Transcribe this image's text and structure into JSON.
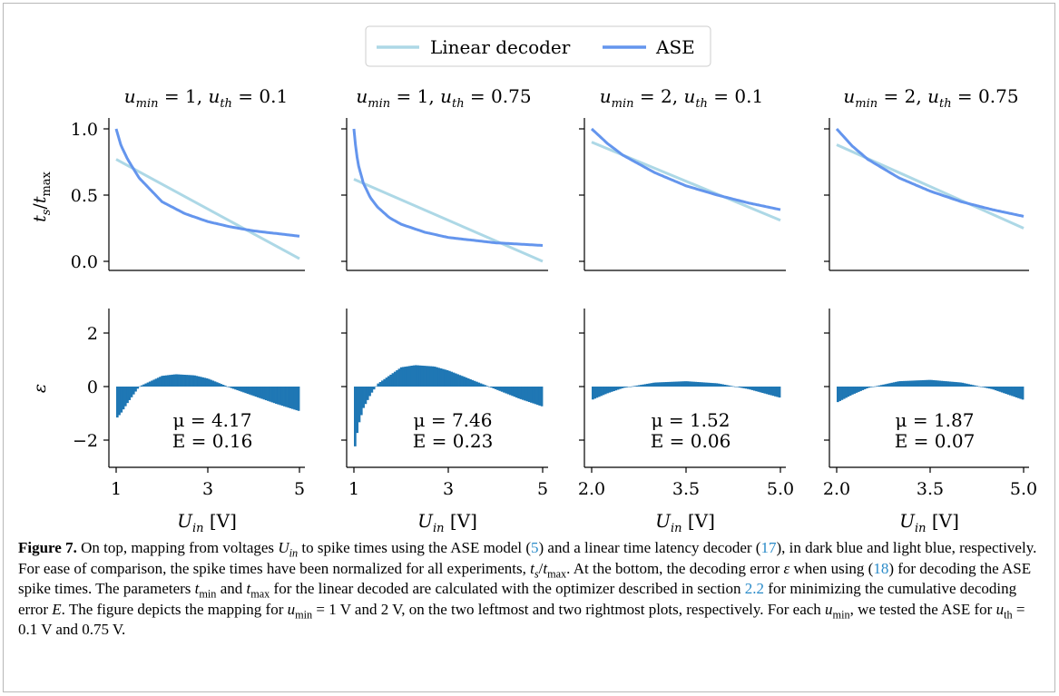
{
  "figure": {
    "legend": {
      "entries": [
        {
          "label": "Linear decoder",
          "color": "#add8e6"
        },
        {
          "label": "ASE",
          "color": "#6495ed"
        }
      ]
    },
    "top_ylabel": "t_s/t_max",
    "bottom_ylabel": "ε",
    "xlabel": "U_in [V]",
    "panels": [
      {
        "title": "u_min = 1, u_th = 0.1",
        "xticks": [
          "1",
          "3",
          "5"
        ]
      },
      {
        "title": "u_min = 1, u_th = 0.75",
        "xticks": [
          "1",
          "3",
          "5"
        ]
      },
      {
        "title": "u_min = 2, u_th = 0.1",
        "xticks": [
          "2.0",
          "3.5",
          "5.0"
        ]
      },
      {
        "title": "u_min = 2, u_th = 0.75",
        "xticks": [
          "2.0",
          "3.5",
          "5.0"
        ]
      }
    ],
    "top_yticks": [
      "0.0",
      "0.5",
      "1.0"
    ],
    "bottom_yticks": [
      "−2",
      "0",
      "2"
    ],
    "bar_color": "#1f77b4"
  },
  "chart_data": [
    {
      "type": "line",
      "title": "u_min = 1, u_th = 0.1",
      "xlabel": "U_in [V]",
      "ylabel": "t_s/t_max",
      "xlim": [
        1,
        5
      ],
      "ylim": [
        0,
        1
      ],
      "series": [
        {
          "name": "Linear decoder",
          "x": [
            1,
            5
          ],
          "y": [
            0.77,
            0.02
          ]
        },
        {
          "name": "ASE",
          "x": [
            1,
            1.1,
            1.25,
            1.5,
            2,
            2.5,
            3,
            3.5,
            4,
            4.5,
            5
          ],
          "y": [
            1.0,
            0.88,
            0.77,
            0.63,
            0.45,
            0.36,
            0.3,
            0.26,
            0.23,
            0.21,
            0.19
          ]
        }
      ]
    },
    {
      "type": "line",
      "title": "u_min = 1, u_th = 0.75",
      "xlabel": "U_in [V]",
      "ylabel": "t_s/t_max",
      "xlim": [
        1,
        5
      ],
      "ylim": [
        0,
        1
      ],
      "series": [
        {
          "name": "Linear decoder",
          "x": [
            1,
            5
          ],
          "y": [
            0.62,
            0.0
          ]
        },
        {
          "name": "ASE",
          "x": [
            1,
            1.05,
            1.1,
            1.2,
            1.35,
            1.5,
            1.75,
            2,
            2.5,
            3,
            3.5,
            4,
            4.5,
            5
          ],
          "y": [
            1.0,
            0.82,
            0.72,
            0.59,
            0.48,
            0.41,
            0.33,
            0.28,
            0.22,
            0.18,
            0.16,
            0.14,
            0.13,
            0.12
          ]
        }
      ]
    },
    {
      "type": "line",
      "title": "u_min = 2, u_th = 0.1",
      "xlabel": "U_in [V]",
      "ylabel": "t_s/t_max",
      "xlim": [
        2,
        5
      ],
      "ylim": [
        0,
        1
      ],
      "series": [
        {
          "name": "Linear decoder",
          "x": [
            2,
            5
          ],
          "y": [
            0.9,
            0.31
          ]
        },
        {
          "name": "ASE",
          "x": [
            2,
            2.25,
            2.5,
            3,
            3.5,
            4,
            4.5,
            5
          ],
          "y": [
            1.0,
            0.89,
            0.8,
            0.67,
            0.57,
            0.5,
            0.44,
            0.39
          ]
        }
      ]
    },
    {
      "type": "line",
      "title": "u_min = 2, u_th = 0.75",
      "xlabel": "U_in [V]",
      "ylabel": "t_s/t_max",
      "xlim": [
        2,
        5
      ],
      "ylim": [
        0,
        1
      ],
      "series": [
        {
          "name": "Linear decoder",
          "x": [
            2,
            5
          ],
          "y": [
            0.88,
            0.25
          ]
        },
        {
          "name": "ASE",
          "x": [
            2,
            2.25,
            2.5,
            3,
            3.5,
            4,
            4.5,
            5
          ],
          "y": [
            1.0,
            0.87,
            0.77,
            0.63,
            0.53,
            0.45,
            0.39,
            0.34
          ]
        }
      ]
    },
    {
      "type": "bar",
      "title": "u_min = 1, u_th = 0.1",
      "xlabel": "U_in [V]",
      "ylabel": "ε",
      "xlim": [
        1,
        5
      ],
      "ylim": [
        -3,
        3
      ],
      "x": [
        1,
        1.1,
        1.25,
        1.5,
        2,
        2.3,
        2.7,
        3,
        3.5,
        4,
        4.5,
        5
      ],
      "values": [
        -1.2,
        -1.0,
        -0.6,
        0.0,
        0.4,
        0.46,
        0.42,
        0.3,
        -0.05,
        -0.35,
        -0.65,
        -0.92
      ],
      "annotations": [
        "μ = 4.17",
        "E = 0.16"
      ]
    },
    {
      "type": "bar",
      "title": "u_min = 1, u_th = 0.75",
      "xlabel": "U_in [V]",
      "ylabel": "ε",
      "xlim": [
        1,
        5
      ],
      "ylim": [
        -3,
        3
      ],
      "x": [
        1,
        1.05,
        1.1,
        1.2,
        1.35,
        1.5,
        2,
        2.3,
        2.7,
        3,
        3.5,
        4,
        4.5,
        5
      ],
      "values": [
        -2.5,
        -1.9,
        -1.4,
        -0.8,
        -0.3,
        0.1,
        0.72,
        0.8,
        0.75,
        0.6,
        0.25,
        -0.1,
        -0.45,
        -0.75
      ],
      "annotations": [
        "μ = 7.46",
        "E = 0.23"
      ]
    },
    {
      "type": "bar",
      "title": "u_min = 2, u_th = 0.1",
      "xlabel": "U_in [V]",
      "ylabel": "ε",
      "xlim": [
        2,
        5
      ],
      "ylim": [
        -3,
        3
      ],
      "x": [
        2,
        2.25,
        2.5,
        3,
        3.5,
        4,
        4.5,
        5
      ],
      "values": [
        -0.5,
        -0.25,
        -0.05,
        0.15,
        0.2,
        0.12,
        -0.1,
        -0.42
      ],
      "annotations": [
        "μ = 1.52",
        "E = 0.06"
      ]
    },
    {
      "type": "bar",
      "title": "u_min = 2, u_th = 0.75",
      "xlabel": "U_in [V]",
      "ylabel": "ε",
      "xlim": [
        2,
        5
      ],
      "ylim": [
        -3,
        3
      ],
      "x": [
        2,
        2.25,
        2.5,
        3,
        3.5,
        4,
        4.5,
        5
      ],
      "values": [
        -0.6,
        -0.3,
        -0.05,
        0.2,
        0.25,
        0.15,
        -0.1,
        -0.5
      ],
      "annotations": [
        "μ = 1.87",
        "E = 0.07"
      ]
    }
  ],
  "caption": {
    "label": "Figure 7.",
    "parts": [
      " On top, mapping from voltages ",
      "U",
      "in",
      " to spike times using the ASE model (",
      "5",
      ") and a linear time latency decoder (",
      "17",
      "), in dark blue and light blue, respectively. For ease of comparison, the spike times have been normalized for all experiments, ",
      "t",
      "s",
      "/",
      "t",
      "max",
      ". At the bottom, the decoding error ",
      "ε",
      " when using (",
      "18",
      ") for decoding the ASE spike times. The parameters ",
      "t",
      "min",
      " and ",
      "t",
      "max",
      " for the linear decoded are calculated with the optimizer described in section ",
      "2.2",
      " for minimizing the cumulative decoding error ",
      "E",
      ". The figure depicts the mapping for ",
      "u",
      "min",
      " = 1 V and 2 V, on the two leftmost and two rightmost plots, respectively. For each ",
      "u",
      "min",
      ", we tested the ASE for ",
      "u",
      "th",
      " = 0.1 V and 0.75 V."
    ]
  }
}
